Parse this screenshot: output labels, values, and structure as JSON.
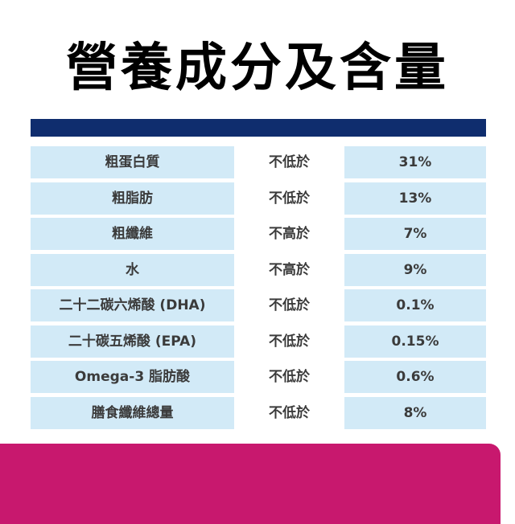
{
  "title": "營養成分及含量",
  "colors": {
    "header_bar": "#0f2d6e",
    "cell_light_blue": "#d2eaf7",
    "footer_panel": "#c8186e"
  },
  "rows": [
    {
      "name": "粗蛋白質",
      "qualifier": "不低於",
      "value": "31%"
    },
    {
      "name": "粗脂肪",
      "qualifier": "不低於",
      "value": "13%"
    },
    {
      "name": "粗纖維",
      "qualifier": "不高於",
      "value": "7%"
    },
    {
      "name": "水",
      "qualifier": "不高於",
      "value": "9%"
    },
    {
      "name": "二十二碳六烯酸 (DHA)",
      "qualifier": "不低於",
      "value": "0.1%"
    },
    {
      "name": "二十碳五烯酸 (EPA)",
      "qualifier": "不低於",
      "value": "0.15%"
    },
    {
      "name": "Omega-3 脂肪酸",
      "qualifier": "不低於",
      "value": "0.6%"
    },
    {
      "name": "膳食纖維總量",
      "qualifier": "不低於",
      "value": "8%"
    }
  ]
}
